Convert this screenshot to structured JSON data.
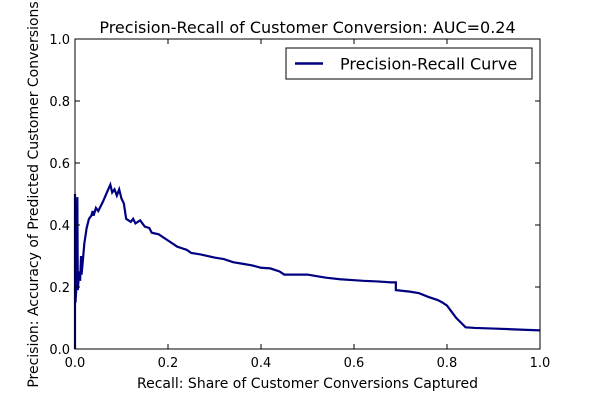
{
  "chart_data": {
    "type": "line",
    "title": "Precision-Recall of Customer Conversion: AUC=0.24",
    "xlabel": "Recall: Share of Customer Conversions Captured",
    "ylabel": "Precision: Accuracy of Predicted Customer Conversions",
    "xlim": [
      0,
      1
    ],
    "ylim": [
      0,
      1
    ],
    "x_ticks": [
      0,
      0.2,
      0.4,
      0.6,
      0.8,
      1
    ],
    "x_tick_labels": [
      "0.0",
      "0.2",
      "0.4",
      "0.6",
      "0.8",
      "1.0"
    ],
    "y_ticks": [
      0,
      0.2,
      0.4,
      0.6,
      0.8,
      1
    ],
    "y_tick_labels": [
      "0.0",
      "0.2",
      "0.4",
      "0.6",
      "0.8",
      "1.0"
    ],
    "grid": false,
    "legend": {
      "placement": "top-right",
      "entries": [
        "Precision-Recall Curve"
      ]
    },
    "series": [
      {
        "name": "Precision-Recall Curve",
        "color": "#000080",
        "points": [
          [
            0.0,
            0.0
          ],
          [
            0.0,
            0.5
          ],
          [
            0.001,
            0.15
          ],
          [
            0.003,
            0.2
          ],
          [
            0.005,
            0.49
          ],
          [
            0.006,
            0.19
          ],
          [
            0.009,
            0.25
          ],
          [
            0.011,
            0.22
          ],
          [
            0.013,
            0.3
          ],
          [
            0.014,
            0.24
          ],
          [
            0.016,
            0.27
          ],
          [
            0.02,
            0.34
          ],
          [
            0.025,
            0.39
          ],
          [
            0.03,
            0.42
          ],
          [
            0.035,
            0.43
          ],
          [
            0.038,
            0.445
          ],
          [
            0.04,
            0.43
          ],
          [
            0.045,
            0.455
          ],
          [
            0.05,
            0.445
          ],
          [
            0.055,
            0.46
          ],
          [
            0.06,
            0.475
          ],
          [
            0.07,
            0.51
          ],
          [
            0.076,
            0.53
          ],
          [
            0.08,
            0.505
          ],
          [
            0.085,
            0.515
          ],
          [
            0.09,
            0.495
          ],
          [
            0.095,
            0.515
          ],
          [
            0.1,
            0.485
          ],
          [
            0.105,
            0.47
          ],
          [
            0.11,
            0.42
          ],
          [
            0.12,
            0.41
          ],
          [
            0.125,
            0.42
          ],
          [
            0.13,
            0.405
          ],
          [
            0.14,
            0.415
          ],
          [
            0.15,
            0.395
          ],
          [
            0.16,
            0.39
          ],
          [
            0.165,
            0.375
          ],
          [
            0.18,
            0.37
          ],
          [
            0.2,
            0.35
          ],
          [
            0.22,
            0.33
          ],
          [
            0.23,
            0.325
          ],
          [
            0.24,
            0.32
          ],
          [
            0.25,
            0.31
          ],
          [
            0.27,
            0.305
          ],
          [
            0.3,
            0.295
          ],
          [
            0.32,
            0.29
          ],
          [
            0.34,
            0.28
          ],
          [
            0.36,
            0.275
          ],
          [
            0.38,
            0.27
          ],
          [
            0.4,
            0.262
          ],
          [
            0.42,
            0.26
          ],
          [
            0.44,
            0.25
          ],
          [
            0.45,
            0.24
          ],
          [
            0.47,
            0.24
          ],
          [
            0.5,
            0.24
          ],
          [
            0.52,
            0.235
          ],
          [
            0.54,
            0.23
          ],
          [
            0.57,
            0.225
          ],
          [
            0.6,
            0.222
          ],
          [
            0.62,
            0.22
          ],
          [
            0.65,
            0.218
          ],
          [
            0.68,
            0.215
          ],
          [
            0.69,
            0.215
          ],
          [
            0.69,
            0.19
          ],
          [
            0.72,
            0.185
          ],
          [
            0.74,
            0.18
          ],
          [
            0.76,
            0.168
          ],
          [
            0.78,
            0.158
          ],
          [
            0.79,
            0.15
          ],
          [
            0.8,
            0.14
          ],
          [
            0.81,
            0.12
          ],
          [
            0.82,
            0.1
          ],
          [
            0.83,
            0.085
          ],
          [
            0.84,
            0.07
          ],
          [
            0.86,
            0.068
          ],
          [
            0.9,
            0.066
          ],
          [
            0.95,
            0.063
          ],
          [
            1.0,
            0.06
          ]
        ]
      }
    ]
  }
}
